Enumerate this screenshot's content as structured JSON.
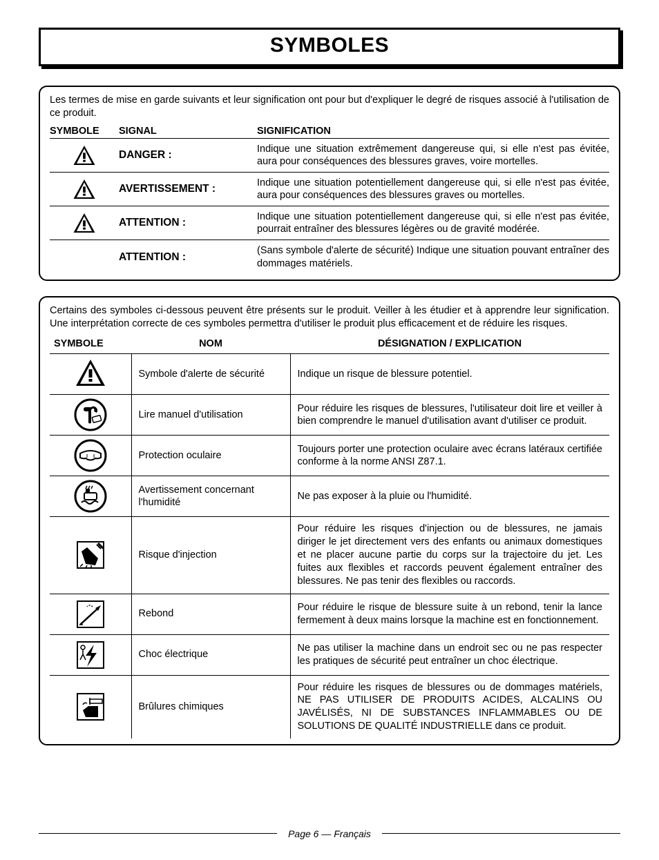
{
  "colors": {
    "border": "#000000",
    "background": "#ffffff",
    "text": "#000000"
  },
  "typography": {
    "body_fontsize_pt": 11,
    "title_fontsize_pt": 22,
    "font_family": "Helvetica"
  },
  "title": "SYMBOLES",
  "box1": {
    "intro": "Les termes de mise en garde suivants et leur signification ont pour but d'expliquer le degré de risques associé à l'utilisation de ce produit.",
    "headers": {
      "symbol": "SYMBOLE",
      "signal": "SIGNAL",
      "meaning": "SIGNIFICATION"
    },
    "rows": [
      {
        "has_icon": true,
        "signal": "DANGER :",
        "meaning": "Indique une situation extrêmement dangereuse qui, si elle n'est pas évitée, aura pour conséquences des blessures graves, voire mortelles."
      },
      {
        "has_icon": true,
        "signal": "AVERTISSEMENT :",
        "meaning": "Indique une situation potentiellement dangereuse qui, si elle n'est pas évitée, aura pour conséquences des blessures graves ou mortelles."
      },
      {
        "has_icon": true,
        "signal": "ATTENTION :",
        "meaning": "Indique une situation potentiellement dangereuse qui, si elle n'est pas évitée, pourrait entraîner des blessures légères ou de gravité modérée."
      },
      {
        "has_icon": false,
        "signal": "ATTENTION :",
        "meaning": "(Sans symbole d'alerte de sécurité) Indique une situation pouvant entraîner des dommages matériels."
      }
    ]
  },
  "box2": {
    "intro": "Certains des symboles ci-dessous peuvent être présents sur le produit. Veiller à les étudier et à apprendre leur signification. Une interprétation correcte de ces symboles permettra d'utiliser le produit plus efficacement et de réduire les risques.",
    "headers": {
      "symbol": "SYMBOLE",
      "name": "NOM",
      "desc": "DÉSIGNATION / EXPLICATION"
    },
    "rows": [
      {
        "icon": "alert",
        "name": "Symbole d'alerte de sécurité",
        "desc": "Indique un risque de blessure potentiel."
      },
      {
        "icon": "manual",
        "name": "Lire manuel d'utilisation",
        "desc": "Pour réduire les risques de blessures, l'utilisateur doit lire et veiller à bien comprendre le manuel d'utilisation avant d'utiliser ce produit."
      },
      {
        "icon": "eye",
        "name": "Protection oculaire",
        "desc": "Toujours porter une protection oculaire avec écrans latéraux certifiée conforme à la norme ANSI Z87.1."
      },
      {
        "icon": "wet",
        "name": "Avertissement concernant l'humidité",
        "desc": "Ne pas exposer à la pluie ou l'humidité."
      },
      {
        "icon": "injection",
        "name": "Risque d'injection",
        "desc": "Pour réduire les risques d'injection ou de blessures, ne jamais diriger le jet directement vers des enfants ou animaux domestiques et ne placer aucune partie du corps sur la trajectoire du jet. Les fuites aux flexibles et raccords peuvent également entraîner des blessures. Ne pas tenir des flexibles ou raccords."
      },
      {
        "icon": "kickback",
        "name": "Rebond",
        "desc": "Pour réduire le risque de blessure suite à un rebond, tenir la lance fermement à deux mains lorsque la machine est en fonctionnement."
      },
      {
        "icon": "shock",
        "name": "Choc électrique",
        "desc": "Ne pas utiliser la machine dans un endroit sec ou ne pas respecter les pratiques de sécurité peut entraîner un choc électrique."
      },
      {
        "icon": "chemical",
        "name": "Brûlures chimiques",
        "desc": "Pour réduire les risques de blessures ou de dommages matériels, NE PAS UTILISER DE PRODUITS ACIDES, ALCALINS OU JAVÉLISÉS, NI DE SUBSTANCES INFLAMMABLES OU DE SOLUTIONS DE QUALITÉ INDUSTRIELLE dans ce produit."
      }
    ]
  },
  "footer": "Page 6  — Français"
}
